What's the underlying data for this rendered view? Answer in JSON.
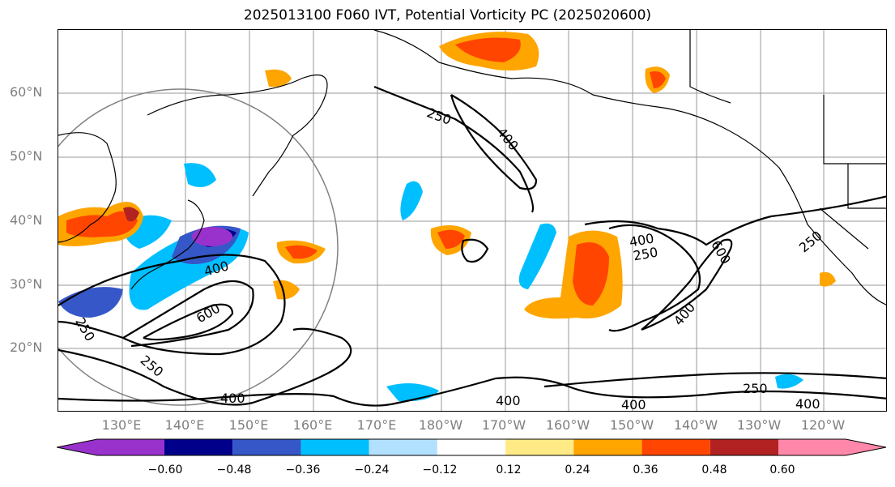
{
  "title": "2025013100 F060 IVT, Potential Vorticity PC (2025020600)",
  "axes": {
    "lat_labels": [
      "60°N",
      "50°N",
      "40°N",
      "30°N",
      "20°N"
    ],
    "lon_labels": [
      "130°E",
      "140°E",
      "150°E",
      "160°E",
      "170°E",
      "180°W",
      "170°W",
      "160°W",
      "150°W",
      "140°W",
      "130°W",
      "120°W"
    ]
  },
  "contours": {
    "labels": [
      "250",
      "400",
      "600",
      "400",
      "250",
      "250",
      "400",
      "250",
      "600",
      "400",
      "250",
      "400",
      "400",
      "400",
      "250",
      "400"
    ]
  },
  "colorbar": {
    "ticks": [
      "−0.60",
      "−0.48",
      "−0.36",
      "−0.24",
      "−0.12",
      "0.12",
      "0.24",
      "0.36",
      "0.48",
      "0.60"
    ],
    "colors": [
      "#9932cc",
      "#00008b",
      "#3657c8",
      "#00bfff",
      "#b2e0ff",
      "#ffffff",
      "#ffea85",
      "#ffa500",
      "#ff4500",
      "#b22222",
      "#ff88aa"
    ]
  },
  "chart_data": {
    "type": "map",
    "variable": "IVT, Potential Vorticity PC",
    "colorbar_bounds": [
      -0.6,
      -0.48,
      -0.36,
      -0.24,
      -0.12,
      0.12,
      0.24,
      0.36,
      0.48,
      0.6
    ],
    "contour_levels": [
      250,
      400,
      600
    ],
    "grid": true
  }
}
